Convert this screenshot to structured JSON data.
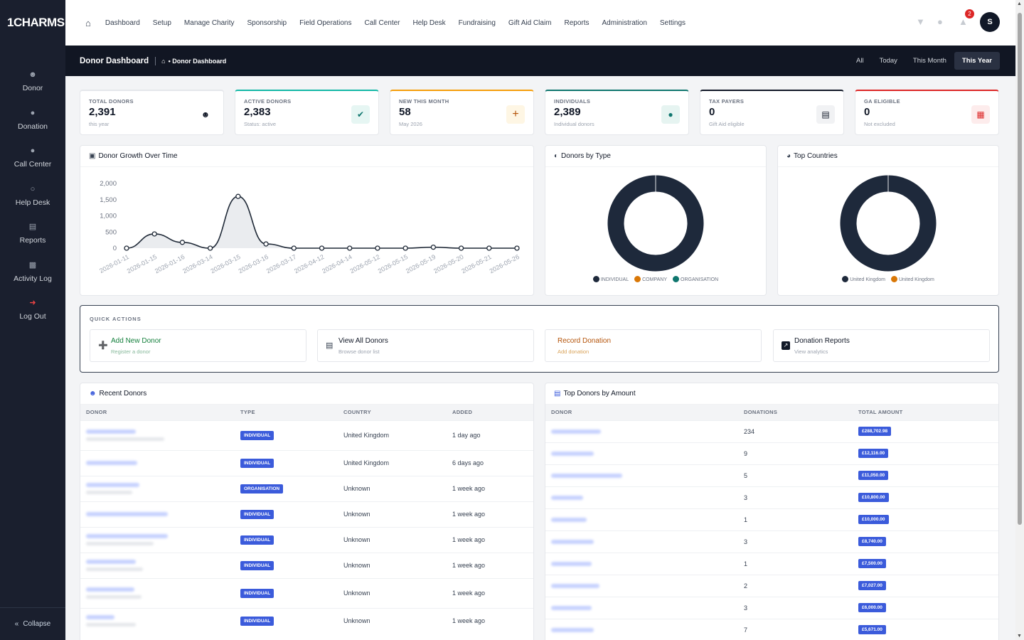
{
  "app": {
    "logo": "1CHARMS"
  },
  "sidebar": {
    "items": [
      {
        "label": "Donor",
        "icon": "user-icon"
      },
      {
        "label": "Donation",
        "icon": "donation-icon"
      },
      {
        "label": "Call Center",
        "icon": "phone-icon"
      },
      {
        "label": "Help Desk",
        "icon": "helpdesk-icon"
      },
      {
        "label": "Reports",
        "icon": "bar-chart-icon"
      },
      {
        "label": "Activity Log",
        "icon": "log-icon"
      },
      {
        "label": "Log Out",
        "icon": "logout-icon"
      }
    ],
    "collapse": "Collapse"
  },
  "topnav": [
    "Dashboard",
    "Setup",
    "Manage Charity",
    "Sponsorship",
    "Field Operations",
    "Call Center",
    "Help Desk",
    "Fundraising",
    "Gift Aid Claim",
    "Reports",
    "Administration",
    "Settings"
  ],
  "topbar": {
    "notif_count": "2",
    "avatar": "S"
  },
  "pagehead": {
    "title": "Donor Dashboard",
    "breadcrumb": "• Donor Dashboard",
    "filters": [
      "All",
      "Today",
      "This Month",
      "This Year"
    ],
    "active_filter": "This Year"
  },
  "stats": [
    {
      "label": "TOTAL DONORS",
      "value": "2,391",
      "sub": "this year",
      "accent": "#e5e7eb",
      "icon": "users-icon"
    },
    {
      "label": "ACTIVE DONORS",
      "value": "2,383",
      "sub": "Status: active",
      "accent": "#14b8a6",
      "icon": "check-icon"
    },
    {
      "label": "NEW THIS MONTH",
      "value": "58",
      "sub": "May 2026",
      "accent": "#f59e0b",
      "icon": "plus-icon"
    },
    {
      "label": "INDIVIDUALS",
      "value": "2,389",
      "sub": "Individual donors",
      "accent": "#0f766e",
      "icon": "person-icon"
    },
    {
      "label": "TAX PAYERS",
      "value": "0",
      "sub": "Gift Aid eligible",
      "accent": "#111827",
      "icon": "document-icon"
    },
    {
      "label": "GA ELIGIBLE",
      "value": "0",
      "sub": "Not excluded",
      "accent": "#dc2626",
      "icon": "gift-icon"
    }
  ],
  "panels": {
    "growth_title": "Donor Growth Over Time",
    "type_title": "Donors by Type",
    "countries_title": "Top Countries"
  },
  "chart_data": [
    {
      "type": "area",
      "title": "Donor Growth Over Time",
      "x": [
        "2026-01-11",
        "2026-01-15",
        "2026-01-16",
        "2026-03-14",
        "2026-03-15",
        "2026-03-16",
        "2026-03-17",
        "2026-04-12",
        "2026-04-14",
        "2026-05-12",
        "2026-05-15",
        "2026-05-19",
        "2026-05-20",
        "2026-05-21",
        "2026-05-26"
      ],
      "values": [
        0,
        440,
        180,
        0,
        1600,
        130,
        0,
        0,
        0,
        0,
        0,
        30,
        0,
        0,
        0
      ],
      "yticks": [
        "2,000",
        "1,500",
        "1,000",
        "500",
        "0"
      ],
      "ylim": [
        0,
        2000
      ],
      "grid": false
    },
    {
      "type": "pie",
      "title": "Donors by Type",
      "categories": [
        "INDIVIDUAL",
        "COMPANY",
        "ORGANISATION"
      ],
      "values": [
        2389,
        1,
        1
      ],
      "colors": [
        "#1e293b",
        "#d97706",
        "#0f766e"
      ]
    },
    {
      "type": "pie",
      "title": "Top Countries",
      "categories": [
        "United Kingdom",
        "United Kingdom"
      ],
      "values": [
        2389,
        2
      ],
      "colors": [
        "#1e293b",
        "#d97706"
      ]
    }
  ],
  "quick_actions": {
    "title": "QUICK ACTIONS",
    "items": [
      {
        "title": "Add New Donor",
        "sub": "Register a donor",
        "color": "#15803d",
        "icon": "plus-circle-icon"
      },
      {
        "title": "View All Donors",
        "sub": "Browse donor list",
        "color": "#111827",
        "icon": "list-icon"
      },
      {
        "title": "Record Donation",
        "sub": "Add donation",
        "color": "#b45309",
        "icon": ""
      },
      {
        "title": "Donation Reports",
        "sub": "View analytics",
        "color": "#111827",
        "icon": "chart-icon"
      }
    ]
  },
  "recent": {
    "title": "Recent Donors",
    "columns": [
      "DONOR",
      "TYPE",
      "COUNTRY",
      "ADDED"
    ],
    "rows": [
      {
        "type": "INDIVIDUAL",
        "country": "United Kingdom",
        "added": "1 day ago"
      },
      {
        "type": "INDIVIDUAL",
        "country": "United Kingdom",
        "added": "6 days ago"
      },
      {
        "type": "ORGANISATION",
        "country": "Unknown",
        "added": "1 week ago"
      },
      {
        "type": "INDIVIDUAL",
        "country": "Unknown",
        "added": "1 week ago"
      },
      {
        "type": "INDIVIDUAL",
        "country": "Unknown",
        "added": "1 week ago"
      },
      {
        "type": "INDIVIDUAL",
        "country": "Unknown",
        "added": "1 week ago"
      },
      {
        "type": "INDIVIDUAL",
        "country": "Unknown",
        "added": "1 week ago"
      },
      {
        "type": "INDIVIDUAL",
        "country": "Unknown",
        "added": "1 week ago"
      }
    ]
  },
  "top": {
    "title": "Top Donors by Amount",
    "columns": [
      "DONOR",
      "DONATIONS",
      "TOTAL AMOUNT"
    ],
    "rows": [
      {
        "donations": "234",
        "amount": "£288,702.98"
      },
      {
        "donations": "9",
        "amount": "£12,116.00"
      },
      {
        "donations": "5",
        "amount": "£11,050.00"
      },
      {
        "donations": "3",
        "amount": "£10,800.00"
      },
      {
        "donations": "1",
        "amount": "£10,000.00"
      },
      {
        "donations": "3",
        "amount": "£8,740.00"
      },
      {
        "donations": "1",
        "amount": "£7,500.00"
      },
      {
        "donations": "2",
        "amount": "£7,027.00"
      },
      {
        "donations": "3",
        "amount": "£6,000.00"
      },
      {
        "donations": "7",
        "amount": "£5,671.00"
      }
    ]
  }
}
